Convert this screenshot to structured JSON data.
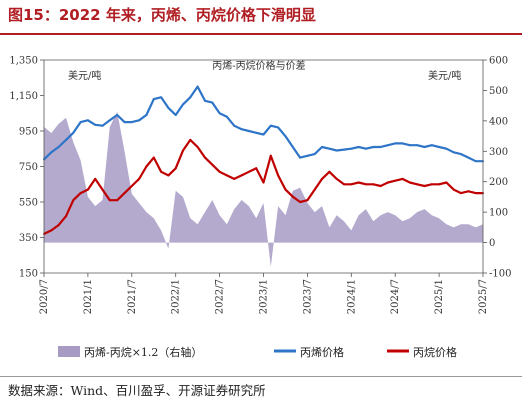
{
  "figure": {
    "label": "图15：2022 年来，丙烯、丙烷价格下滑明显",
    "source": "数据来源：Wind、百川盈孚、开源证券研究所"
  },
  "colors": {
    "title": "#b01e23",
    "propylene": "#2e75c8",
    "propane": "#c00000",
    "spread": "#a79bc4"
  },
  "chart_data": {
    "type": "line",
    "title": "丙烯-丙烷价格与价差",
    "left_axis_unit": "美元/吨",
    "right_axis_unit": "美元/吨",
    "ylim_left": [
      150,
      1350
    ],
    "yticks_left": [
      150,
      350,
      550,
      750,
      950,
      1150,
      1350
    ],
    "ytick_labels_left": [
      "150",
      "350",
      "550",
      "750",
      "950",
      "1,150",
      "1,350"
    ],
    "ylim_right": [
      -100,
      600
    ],
    "yticks_right": [
      -100,
      0,
      100,
      200,
      300,
      400,
      500,
      600
    ],
    "xlim": [
      "2020/7",
      "2025/7"
    ],
    "xtick_labels": [
      "2020/7",
      "2021/1",
      "2021/7",
      "2022/1",
      "2022/7",
      "2023/1",
      "2023/7",
      "2024/1",
      "2024/7",
      "2025/1",
      "2025/7"
    ],
    "legend_position": "bottom",
    "series": [
      {
        "name": "丙烯-丙烷×1.2（右轴）",
        "type": "area",
        "axis": "right",
        "color": "#a79bc4",
        "x": [
          "2020/7",
          "2020/8",
          "2020/9",
          "2020/10",
          "2020/11",
          "2020/12",
          "2021/1",
          "2021/2",
          "2021/3",
          "2021/4",
          "2021/5",
          "2021/6",
          "2021/7",
          "2021/8",
          "2021/9",
          "2021/10",
          "2021/11",
          "2021/12",
          "2022/1",
          "2022/2",
          "2022/3",
          "2022/4",
          "2022/5",
          "2022/6",
          "2022/7",
          "2022/8",
          "2022/9",
          "2022/10",
          "2022/11",
          "2022/12",
          "2023/1",
          "2023/2",
          "2023/3",
          "2023/4",
          "2023/5",
          "2023/6",
          "2023/7",
          "2023/8",
          "2023/9",
          "2023/10",
          "2023/11",
          "2023/12",
          "2024/1",
          "2024/2",
          "2024/3",
          "2024/4",
          "2024/5",
          "2024/6",
          "2024/7",
          "2024/8",
          "2024/9",
          "2024/10",
          "2024/11",
          "2024/12",
          "2025/1",
          "2025/2",
          "2025/3",
          "2025/4",
          "2025/5",
          "2025/6",
          "2025/7"
        ],
        "values": [
          380,
          360,
          390,
          410,
          330,
          270,
          150,
          120,
          140,
          380,
          430,
          300,
          160,
          130,
          100,
          80,
          40,
          -20,
          170,
          150,
          80,
          60,
          100,
          140,
          90,
          60,
          110,
          140,
          120,
          80,
          130,
          -80,
          120,
          90,
          170,
          180,
          130,
          100,
          120,
          50,
          90,
          70,
          40,
          90,
          110,
          70,
          90,
          100,
          90,
          70,
          80,
          100,
          110,
          90,
          80,
          60,
          50,
          60,
          60,
          50,
          60
        ]
      },
      {
        "name": "丙烯价格",
        "type": "line",
        "axis": "left",
        "color": "#2e75c8",
        "x": [
          "2020/7",
          "2020/8",
          "2020/9",
          "2020/10",
          "2020/11",
          "2020/12",
          "2021/1",
          "2021/2",
          "2021/3",
          "2021/4",
          "2021/5",
          "2021/6",
          "2021/7",
          "2021/8",
          "2021/9",
          "2021/10",
          "2021/11",
          "2021/12",
          "2022/1",
          "2022/2",
          "2022/3",
          "2022/4",
          "2022/5",
          "2022/6",
          "2022/7",
          "2022/8",
          "2022/9",
          "2022/10",
          "2022/11",
          "2022/12",
          "2023/1",
          "2023/2",
          "2023/3",
          "2023/4",
          "2023/5",
          "2023/6",
          "2023/7",
          "2023/8",
          "2023/9",
          "2023/10",
          "2023/11",
          "2023/12",
          "2024/1",
          "2024/2",
          "2024/3",
          "2024/4",
          "2024/5",
          "2024/6",
          "2024/7",
          "2024/8",
          "2024/9",
          "2024/10",
          "2024/11",
          "2024/12",
          "2025/1",
          "2025/2",
          "2025/3",
          "2025/4",
          "2025/5",
          "2025/6",
          "2025/7"
        ],
        "values": [
          790,
          830,
          860,
          900,
          940,
          1000,
          1010,
          985,
          980,
          1010,
          1040,
          1000,
          1000,
          1010,
          1040,
          1130,
          1140,
          1080,
          1040,
          1100,
          1140,
          1200,
          1120,
          1110,
          1050,
          1030,
          980,
          960,
          950,
          940,
          930,
          980,
          970,
          920,
          860,
          800,
          810,
          820,
          860,
          850,
          840,
          845,
          850,
          860,
          850,
          860,
          860,
          870,
          880,
          880,
          870,
          870,
          860,
          870,
          860,
          850,
          830,
          820,
          800,
          780,
          780
        ]
      },
      {
        "name": "丙烷价格",
        "type": "line",
        "axis": "left",
        "color": "#c00000",
        "x": [
          "2020/7",
          "2020/8",
          "2020/9",
          "2020/10",
          "2020/11",
          "2020/12",
          "2021/1",
          "2021/2",
          "2021/3",
          "2021/4",
          "2021/5",
          "2021/6",
          "2021/7",
          "2021/8",
          "2021/9",
          "2021/10",
          "2021/11",
          "2021/12",
          "2022/1",
          "2022/2",
          "2022/3",
          "2022/4",
          "2022/5",
          "2022/6",
          "2022/7",
          "2022/8",
          "2022/9",
          "2022/10",
          "2022/11",
          "2022/12",
          "2023/1",
          "2023/2",
          "2023/3",
          "2023/4",
          "2023/5",
          "2023/6",
          "2023/7",
          "2023/8",
          "2023/9",
          "2023/10",
          "2023/11",
          "2023/12",
          "2024/1",
          "2024/2",
          "2024/3",
          "2024/4",
          "2024/5",
          "2024/6",
          "2024/7",
          "2024/8",
          "2024/9",
          "2024/10",
          "2024/11",
          "2024/12",
          "2025/1",
          "2025/2",
          "2025/3",
          "2025/4",
          "2025/5",
          "2025/6",
          "2025/7"
        ],
        "values": [
          370,
          390,
          420,
          470,
          560,
          600,
          620,
          680,
          620,
          560,
          560,
          600,
          640,
          680,
          750,
          800,
          720,
          700,
          740,
          840,
          900,
          860,
          800,
          760,
          720,
          700,
          680,
          700,
          720,
          740,
          660,
          810,
          700,
          620,
          580,
          550,
          560,
          620,
          680,
          720,
          680,
          650,
          650,
          660,
          650,
          650,
          640,
          660,
          670,
          680,
          660,
          650,
          640,
          650,
          650,
          660,
          620,
          600,
          610,
          600,
          600
        ]
      }
    ]
  }
}
